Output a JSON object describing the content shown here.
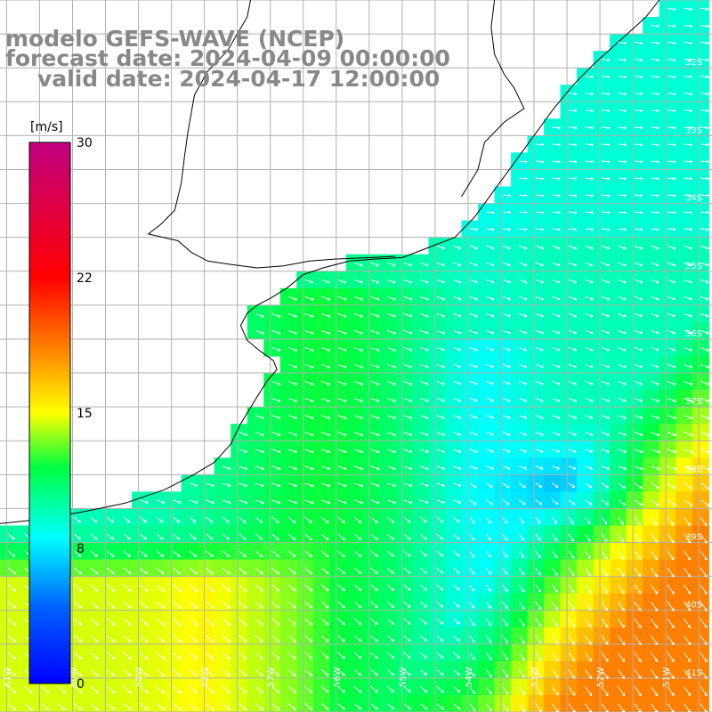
{
  "titles": {
    "line1": "modelo GEFS-WAVE (NCEP)",
    "line2": "forecast date: 2024-04-09 00:00:00",
    "line3": "valid date: 2024-04-17 12:00:00"
  },
  "colorbar": {
    "unit": "[m/s]",
    "labels": [
      "30",
      "22",
      "15",
      "8",
      "0"
    ],
    "range": [
      0,
      30
    ]
  },
  "lat_labels": [
    "32S",
    "33S",
    "34S",
    "35S",
    "36S",
    "37S",
    "38S",
    "39S",
    "40S",
    "41S"
  ],
  "lon_labels": [
    "61W",
    "60W",
    "59W",
    "58W",
    "57W",
    "56W",
    "55W",
    "54W",
    "53W",
    "52W",
    "51W"
  ],
  "map_extent": {
    "lon": [
      -61.1,
      -50.3
    ],
    "lat": [
      -41.5,
      -31.0
    ]
  },
  "colors": {
    "land": "#ffffff",
    "grid": "#b0b0b0",
    "coast": "#000000",
    "arrow": "#ffffff",
    "title": "#888888"
  }
}
